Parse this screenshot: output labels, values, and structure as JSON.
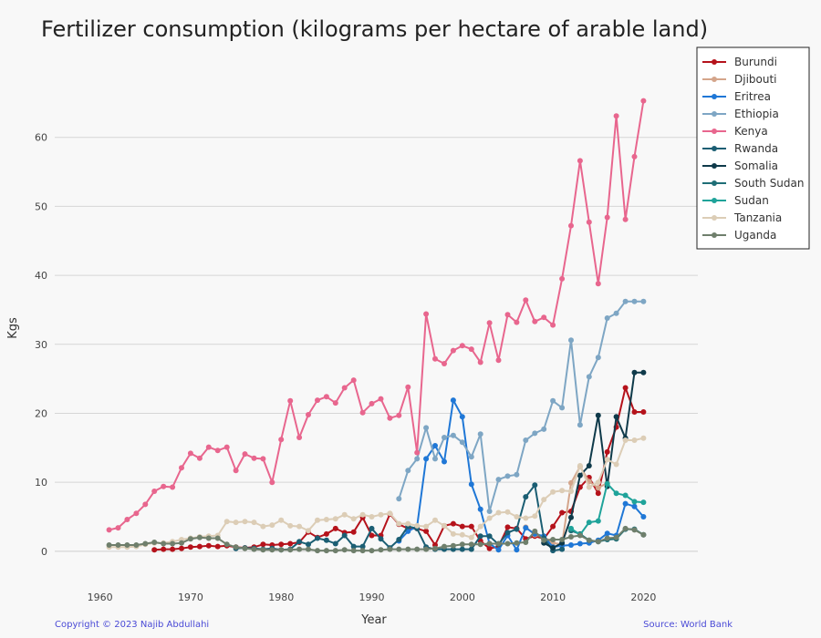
{
  "chart_data": {
    "type": "line",
    "title": "Fertilizer consumption (kilograms per hectare of arable land)",
    "xlabel": "Year",
    "ylabel": "Kgs",
    "xlim": [
      1955,
      2026
    ],
    "ylim": [
      -2,
      70
    ],
    "xticks": [
      1960,
      1970,
      1980,
      1990,
      2000,
      2010,
      2020
    ],
    "yticks": [
      0,
      10,
      20,
      30,
      40,
      50,
      60
    ],
    "grid": "horizontal",
    "legend_position": "top-right",
    "series": [
      {
        "name": "Burundi",
        "color": "#b5121b",
        "x": [
          1966,
          1967,
          1968,
          1969,
          1970,
          1971,
          1972,
          1973,
          1974,
          1975,
          1976,
          1977,
          1978,
          1979,
          1980,
          1981,
          1982,
          1983,
          1984,
          1985,
          1986,
          1987,
          1988,
          1989,
          1990,
          1991,
          1992,
          1993,
          1994,
          1995,
          1996,
          1997,
          1998,
          1999,
          2000,
          2001,
          2002,
          2003,
          2004,
          2005,
          2006,
          2007,
          2008,
          2009,
          2010,
          2011,
          2012,
          2013,
          2014,
          2015,
          2016,
          2017,
          2018,
          2019,
          2020
        ],
        "y": [
          0.2,
          0.3,
          0.3,
          0.4,
          0.6,
          0.7,
          0.8,
          0.7,
          0.8,
          0.6,
          0.5,
          0.6,
          1.0,
          0.9,
          1.0,
          1.1,
          1.3,
          2.8,
          2.0,
          2.5,
          3.3,
          2.7,
          2.8,
          4.9,
          2.3,
          2.3,
          5.4,
          3.9,
          3.3,
          3.3,
          2.9,
          0.9,
          3.7,
          4.0,
          3.6,
          3.6,
          1.5,
          0.4,
          0.7,
          3.5,
          3.3,
          1.8,
          2.2,
          1.8,
          3.6,
          5.6,
          5.8,
          9.3,
          10.7,
          8.4,
          14.4,
          18.0,
          23.7,
          20.2,
          20.2
        ]
      },
      {
        "name": "Djibouti",
        "color": "#d4a58b",
        "x": [
          2007,
          2008,
          2009,
          2010,
          2011,
          2012,
          2013,
          2014,
          2015,
          2016
        ],
        "y": [
          3.5,
          2.4,
          2.1,
          1.2,
          1.0,
          9.9,
          12.3,
          10.1,
          9.2,
          9.9
        ]
      },
      {
        "name": "Eritrea",
        "color": "#1f77d6",
        "x": [
          1993,
          1994,
          1995,
          1996,
          1997,
          1998,
          1999,
          2000,
          2001,
          2002,
          2003,
          2004,
          2005,
          2006,
          2007,
          2008,
          2009,
          2010,
          2011,
          2012,
          2013,
          2014,
          2015,
          2016,
          2017,
          2018,
          2019,
          2020
        ],
        "y": [
          1.5,
          2.9,
          3.6,
          13.4,
          15.3,
          13.0,
          21.9,
          19.5,
          9.7,
          6.1,
          1.1,
          0.2,
          2.3,
          0.2,
          3.4,
          2.5,
          2.2,
          0.6,
          0.8,
          0.9,
          1.1,
          1.2,
          1.6,
          2.6,
          2.3,
          6.9,
          6.5,
          5.0
        ]
      },
      {
        "name": "Ethiopia",
        "color": "#7ea6c4",
        "x": [
          1993,
          1994,
          1995,
          1996,
          1997,
          1998,
          1999,
          2000,
          2001,
          2002,
          2003,
          2004,
          2005,
          2006,
          2007,
          2008,
          2009,
          2010,
          2011,
          2012,
          2013,
          2014,
          2015,
          2016,
          2017,
          2018,
          2019,
          2020
        ],
        "y": [
          7.6,
          11.7,
          13.4,
          17.9,
          13.4,
          16.5,
          16.8,
          15.8,
          13.7,
          17.0,
          5.8,
          10.4,
          10.9,
          11.1,
          16.1,
          17.1,
          17.7,
          21.8,
          20.8,
          30.6,
          18.3,
          25.3,
          28.1,
          33.8,
          34.5,
          36.2,
          36.2,
          36.2
        ]
      },
      {
        "name": "Kenya",
        "color": "#e8668e",
        "x": [
          1961,
          1962,
          1963,
          1964,
          1965,
          1966,
          1967,
          1968,
          1969,
          1970,
          1971,
          1972,
          1973,
          1974,
          1975,
          1976,
          1977,
          1978,
          1979,
          1980,
          1981,
          1982,
          1983,
          1984,
          1985,
          1986,
          1987,
          1988,
          1989,
          1990,
          1991,
          1992,
          1993,
          1994,
          1995,
          1996,
          1997,
          1998,
          1999,
          2000,
          2001,
          2002,
          2003,
          2004,
          2005,
          2006,
          2007,
          2008,
          2009,
          2010,
          2011,
          2012,
          2013,
          2014,
          2015,
          2016,
          2017,
          2018,
          2019,
          2020
        ],
        "y": [
          3.1,
          3.4,
          4.6,
          5.5,
          6.8,
          8.7,
          9.4,
          9.3,
          12.1,
          14.2,
          13.5,
          15.1,
          14.6,
          15.1,
          11.7,
          14.1,
          13.5,
          13.4,
          10.0,
          16.2,
          21.8,
          16.5,
          19.8,
          21.9,
          22.4,
          21.5,
          23.7,
          24.8,
          20.1,
          21.4,
          22.1,
          19.3,
          19.7,
          23.8,
          14.3,
          34.4,
          27.9,
          27.2,
          29.1,
          29.8,
          29.3,
          27.4,
          33.1,
          27.7,
          34.3,
          33.2,
          36.4,
          33.3,
          33.9,
          32.8,
          39.5,
          47.2,
          56.6,
          47.7,
          38.8,
          48.4,
          63.1,
          48.1,
          57.2,
          65.3
        ]
      },
      {
        "name": "Rwanda",
        "color": "#1b5e73",
        "x": [
          1975,
          1976,
          1977,
          1978,
          1979,
          1980,
          1981,
          1982,
          1983,
          1984,
          1985,
          1986,
          1987,
          1988,
          1989,
          1990,
          1991,
          1992,
          1993,
          1994,
          1995,
          1996,
          1997,
          1998,
          1999,
          2000,
          2001,
          2002,
          2003,
          2004,
          2005,
          2006,
          2007,
          2008,
          2009,
          2010,
          2011
        ],
        "y": [
          0.4,
          0.5,
          0.4,
          0.3,
          0.4,
          0.2,
          0.3,
          1.4,
          1.0,
          1.9,
          1.6,
          1.1,
          2.3,
          0.7,
          0.7,
          3.3,
          1.8,
          0.5,
          1.7,
          3.6,
          3.3,
          0.6,
          0.3,
          0.3,
          0.3,
          0.3,
          0.3,
          2.2,
          2.2,
          1.0,
          2.7,
          3.2,
          7.9,
          9.6,
          1.9,
          0.1,
          0.3
        ]
      },
      {
        "name": "Somalia",
        "color": "#0f3a4a",
        "x": [
          2009,
          2010,
          2011,
          2012,
          2013,
          2014,
          2015,
          2016,
          2017,
          2018,
          2019,
          2020
        ],
        "y": [
          1.2,
          0.5,
          1.2,
          4.9,
          11.0,
          12.4,
          19.7,
          9.4,
          19.5,
          16.4,
          25.9,
          25.9
        ]
      },
      {
        "name": "South Sudan",
        "color": "#1e6e76",
        "x": [
          2012,
          2013,
          2014,
          2015,
          2016,
          2017,
          2018,
          2019,
          2020
        ],
        "y": [
          3.0,
          2.5,
          1.6,
          1.4,
          1.7,
          1.8,
          3.2,
          3.2,
          2.4
        ]
      },
      {
        "name": "Sudan",
        "color": "#1fa39a",
        "x": [
          2012,
          2013,
          2014,
          2015,
          2016,
          2017,
          2018,
          2019,
          2020
        ],
        "y": [
          3.3,
          2.4,
          4.2,
          4.4,
          9.8,
          8.4,
          8.1,
          7.2,
          7.1
        ]
      },
      {
        "name": "Tanzania",
        "color": "#dccdb6",
        "x": [
          1961,
          1962,
          1963,
          1964,
          1965,
          1966,
          1967,
          1968,
          1969,
          1970,
          1971,
          1972,
          1973,
          1974,
          1975,
          1976,
          1977,
          1978,
          1979,
          1980,
          1981,
          1982,
          1983,
          1984,
          1985,
          1986,
          1987,
          1988,
          1989,
          1990,
          1991,
          1992,
          1993,
          1994,
          1995,
          1996,
          1997,
          1998,
          1999,
          2000,
          2001,
          2002,
          2003,
          2004,
          2005,
          2006,
          2007,
          2008,
          2009,
          2010,
          2011,
          2012,
          2013,
          2014,
          2015,
          2016,
          2017,
          2018,
          2019,
          2020
        ],
        "y": [
          0.6,
          0.6,
          0.6,
          0.7,
          1.0,
          1.2,
          1.2,
          1.4,
          1.7,
          1.9,
          2.1,
          2.2,
          2.3,
          4.3,
          4.2,
          4.3,
          4.2,
          3.6,
          3.8,
          4.5,
          3.7,
          3.6,
          3.0,
          4.5,
          4.6,
          4.7,
          5.3,
          4.7,
          5.3,
          5.0,
          5.3,
          5.5,
          4.0,
          4.0,
          3.7,
          3.6,
          4.5,
          3.7,
          2.5,
          2.4,
          2.0,
          3.6,
          4.8,
          5.6,
          5.7,
          5.0,
          4.8,
          5.1,
          7.5,
          8.6,
          8.8,
          8.7,
          12.4,
          9.3,
          10.0,
          13.3,
          12.6,
          16.1,
          16.1,
          16.4
        ]
      },
      {
        "name": "Uganda",
        "color": "#6f7f6c",
        "x": [
          1961,
          1962,
          1963,
          1964,
          1965,
          1966,
          1967,
          1968,
          1969,
          1970,
          1971,
          1972,
          1973,
          1974,
          1975,
          1976,
          1977,
          1978,
          1979,
          1980,
          1981,
          1982,
          1983,
          1984,
          1985,
          1986,
          1987,
          1988,
          1989,
          1990,
          1991,
          1992,
          1993,
          1994,
          1995,
          1996,
          1997,
          1998,
          1999,
          2000,
          2001,
          2002,
          2003,
          2004,
          2005,
          2006,
          2007,
          2008,
          2009,
          2010,
          2011,
          2012,
          2013,
          2014,
          2015,
          2016,
          2017,
          2018,
          2019,
          2020
        ],
        "y": [
          0.9,
          0.9,
          0.9,
          0.9,
          1.1,
          1.3,
          1.1,
          1.1,
          1.2,
          1.8,
          2.0,
          1.9,
          1.9,
          1.0,
          0.6,
          0.4,
          0.3,
          0.2,
          0.2,
          0.2,
          0.2,
          0.3,
          0.3,
          0.1,
          0.1,
          0.1,
          0.2,
          0.1,
          0.1,
          0.1,
          0.2,
          0.3,
          0.3,
          0.3,
          0.3,
          0.3,
          0.4,
          0.7,
          0.8,
          1.0,
          1.0,
          1.0,
          1.1,
          1.1,
          1.1,
          1.2,
          1.3,
          2.9,
          1.6,
          1.7,
          1.7,
          2.1,
          2.3,
          1.6,
          1.4,
          1.9,
          2.0,
          3.3,
          3.1,
          2.4
        ]
      }
    ]
  },
  "footer": {
    "left": "Copyright © 2023 Najib Abdullahi",
    "right": "Source: World Bank"
  }
}
